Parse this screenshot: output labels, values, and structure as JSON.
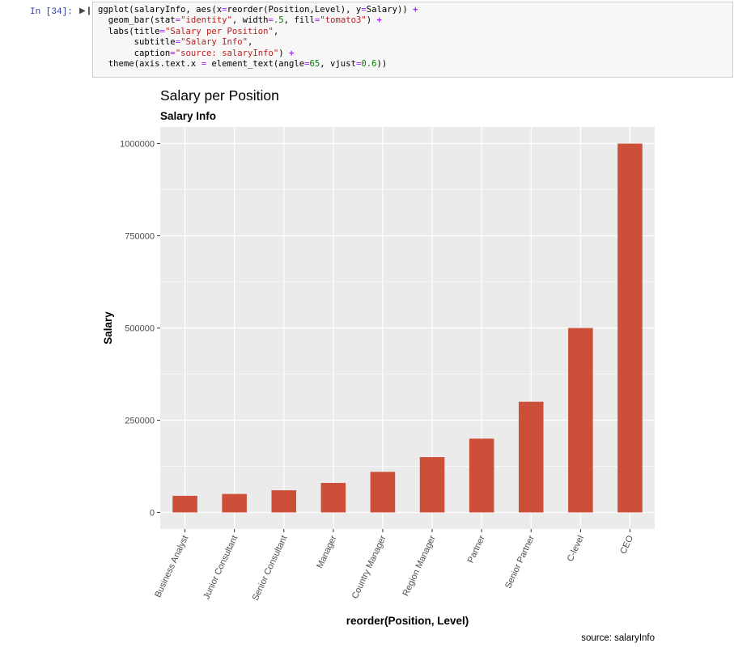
{
  "cell": {
    "prompt": "In [34]:",
    "run_icon": "play-step-icon",
    "code_lines": [
      [
        {
          "t": "ggplot(salaryInfo, aes(x"
        },
        {
          "t": "=",
          "c": "eq"
        },
        {
          "t": "reorder(Position,Level), y"
        },
        {
          "t": "=",
          "c": "eq"
        },
        {
          "t": "Salary)) "
        },
        {
          "t": "+",
          "c": "op"
        }
      ],
      [
        {
          "t": "  geom_bar(stat"
        },
        {
          "t": "=",
          "c": "eq"
        },
        {
          "t": "\"identity\"",
          "c": "str"
        },
        {
          "t": ", width"
        },
        {
          "t": "=",
          "c": "eq"
        },
        {
          "t": ".5",
          "c": "num"
        },
        {
          "t": ", fill"
        },
        {
          "t": "=",
          "c": "eq"
        },
        {
          "t": "\"tomato3\"",
          "c": "str"
        },
        {
          "t": ") "
        },
        {
          "t": "+",
          "c": "op"
        }
      ],
      [
        {
          "t": "  labs(title"
        },
        {
          "t": "=",
          "c": "eq"
        },
        {
          "t": "\"Salary per Position\"",
          "c": "str"
        },
        {
          "t": ","
        }
      ],
      [
        {
          "t": "       subtitle"
        },
        {
          "t": "=",
          "c": "eq"
        },
        {
          "t": "\"Salary Info\"",
          "c": "str"
        },
        {
          "t": ","
        }
      ],
      [
        {
          "t": "       caption"
        },
        {
          "t": "=",
          "c": "eq"
        },
        {
          "t": "\"source: salaryInfo\"",
          "c": "str"
        },
        {
          "t": ") "
        },
        {
          "t": "+",
          "c": "op"
        }
      ],
      [
        {
          "t": "  theme(axis.text.x "
        },
        {
          "t": "=",
          "c": "eq"
        },
        {
          "t": " element_text(angle"
        },
        {
          "t": "=",
          "c": "eq"
        },
        {
          "t": "65",
          "c": "num"
        },
        {
          "t": ", vjust"
        },
        {
          "t": "=",
          "c": "eq"
        },
        {
          "t": "0.6",
          "c": "num"
        },
        {
          "t": "))"
        }
      ]
    ]
  },
  "chart_data": {
    "type": "bar",
    "title": "Salary per Position",
    "subtitle": "Salary Info",
    "caption": "source: salaryInfo",
    "xlabel": "reorder(Position, Level)",
    "ylabel": "Salary",
    "categories": [
      "Business Analyst",
      "Junior Consultant",
      "Senior Consultant",
      "Manager",
      "Country Manager",
      "Region Manager",
      "Partner",
      "Senior Partner",
      "C-level",
      "CEO"
    ],
    "values": [
      45000,
      50000,
      60000,
      80000,
      110000,
      150000,
      200000,
      300000,
      500000,
      1000000
    ],
    "yticks": [
      0,
      250000,
      500000,
      750000,
      1000000
    ],
    "ylim": [
      -45000,
      1045000
    ],
    "bar_width": 0.5,
    "x_tick_angle": 65,
    "grid": true,
    "bar_color": "#cd4f39",
    "panel_color": "#ebebeb",
    "grid_color": "#ffffff"
  }
}
